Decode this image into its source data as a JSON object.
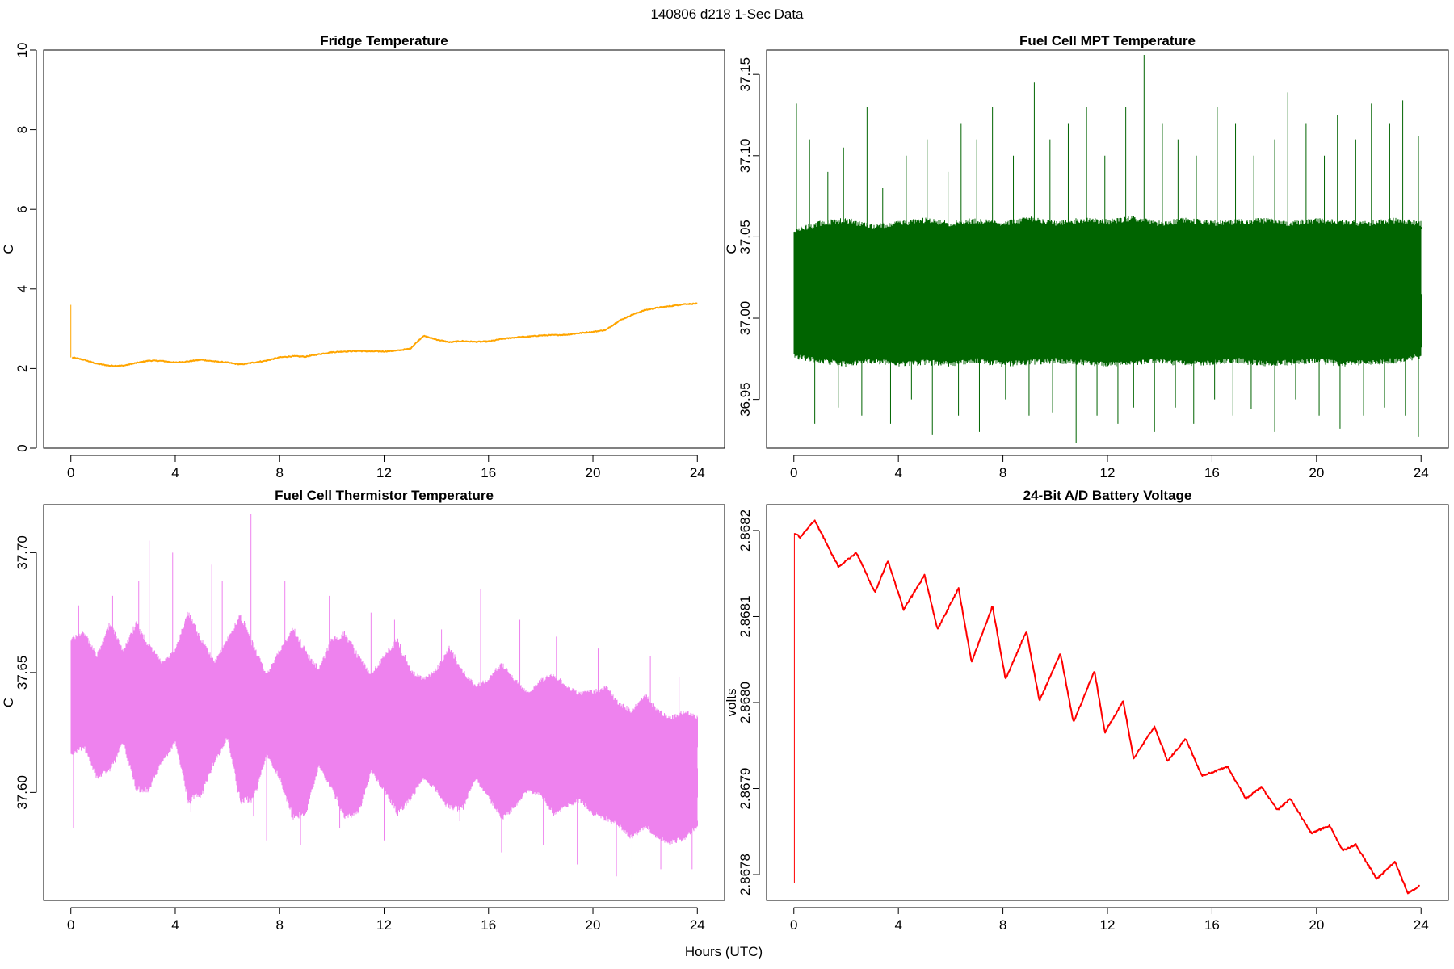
{
  "figure": {
    "title": "140806   d218   1-Sec Data",
    "xlabel": "Hours (UTC)"
  },
  "chart_data": [
    {
      "type": "line",
      "title": "Fridge Temperature",
      "ylabel": "C",
      "xlabel": "Hours (UTC)",
      "color": "#ffa500",
      "xlim": [
        0,
        24
      ],
      "ylim": [
        0,
        10
      ],
      "xticks": [
        0,
        4,
        8,
        12,
        16,
        20,
        24
      ],
      "yticks": [
        0,
        2,
        4,
        6,
        8,
        10
      ],
      "ytick_labels": [
        "0",
        "2",
        "4",
        "6",
        "8",
        "10"
      ],
      "noise": 0.012,
      "spikes": [
        [
          0.0,
          3.6
        ]
      ],
      "x": [
        0,
        0.05,
        0.5,
        1,
        1.5,
        2,
        2.5,
        3,
        3.5,
        4,
        4.5,
        5,
        5.5,
        6,
        6.5,
        7,
        7.5,
        8,
        8.5,
        9,
        9.5,
        10,
        10.5,
        11,
        11.5,
        12,
        12.5,
        13,
        13.5,
        14,
        14.5,
        15,
        15.5,
        16,
        16.5,
        17,
        17.5,
        18,
        18.5,
        19,
        19.5,
        20,
        20.5,
        21,
        21.5,
        22,
        22.5,
        23,
        23.5,
        24
      ],
      "y": [
        2.28,
        2.28,
        2.22,
        2.12,
        2.07,
        2.07,
        2.14,
        2.2,
        2.19,
        2.15,
        2.18,
        2.22,
        2.18,
        2.15,
        2.1,
        2.15,
        2.2,
        2.28,
        2.31,
        2.3,
        2.36,
        2.41,
        2.43,
        2.44,
        2.43,
        2.43,
        2.45,
        2.5,
        2.82,
        2.73,
        2.66,
        2.69,
        2.67,
        2.68,
        2.74,
        2.78,
        2.8,
        2.83,
        2.84,
        2.85,
        2.89,
        2.92,
        2.97,
        3.2,
        3.35,
        3.47,
        3.53,
        3.57,
        3.62,
        3.63
      ]
    },
    {
      "type": "line",
      "title": "Fuel Cell MPT Temperature",
      "ylabel": "C",
      "xlabel": "Hours (UTC)",
      "color": "#006400",
      "xlim": [
        0,
        24
      ],
      "ylim": [
        36.92,
        37.165
      ],
      "xticks": [
        0,
        4,
        8,
        12,
        16,
        20,
        24
      ],
      "yticks": [
        36.95,
        37.0,
        37.05,
        37.1,
        37.15
      ],
      "ytick_labels": [
        "36.95",
        "37.00",
        "37.05",
        "37.10",
        "37.15"
      ],
      "band_x": [
        0,
        1,
        2,
        3,
        4,
        5,
        6,
        7,
        8,
        9,
        10,
        11,
        12,
        13,
        14,
        15,
        16,
        17,
        18,
        19,
        20,
        21,
        22,
        23,
        24
      ],
      "band_low": [
        36.975,
        36.972,
        36.97,
        36.972,
        36.97,
        36.971,
        36.97,
        36.972,
        36.97,
        36.971,
        36.972,
        36.971,
        36.97,
        36.971,
        36.972,
        36.97,
        36.971,
        36.972,
        36.97,
        36.971,
        36.972,
        36.97,
        36.971,
        36.972,
        36.975
      ],
      "band_high": [
        37.055,
        37.06,
        37.062,
        37.058,
        37.06,
        37.062,
        37.06,
        37.062,
        37.06,
        37.063,
        37.06,
        37.062,
        37.061,
        37.063,
        37.06,
        37.062,
        37.06,
        37.061,
        37.062,
        37.06,
        37.062,
        37.061,
        37.06,
        37.062,
        37.06
      ],
      "spikes": [
        [
          0.1,
          37.132
        ],
        [
          0.6,
          37.11
        ],
        [
          1.3,
          37.09
        ],
        [
          1.9,
          37.105
        ],
        [
          2.8,
          37.13
        ],
        [
          3.4,
          37.08
        ],
        [
          4.3,
          37.1
        ],
        [
          5.1,
          37.11
        ],
        [
          5.9,
          37.09
        ],
        [
          6.4,
          37.12
        ],
        [
          7.0,
          37.11
        ],
        [
          7.6,
          37.13
        ],
        [
          8.4,
          37.1
        ],
        [
          9.2,
          37.145
        ],
        [
          9.8,
          37.11
        ],
        [
          10.5,
          37.12
        ],
        [
          11.2,
          37.13
        ],
        [
          11.9,
          37.1
        ],
        [
          12.7,
          37.13
        ],
        [
          13.4,
          37.162
        ],
        [
          14.1,
          37.12
        ],
        [
          14.7,
          37.11
        ],
        [
          15.4,
          37.1
        ],
        [
          16.2,
          37.13
        ],
        [
          16.9,
          37.12
        ],
        [
          17.6,
          37.1
        ],
        [
          18.4,
          37.11
        ],
        [
          18.9,
          37.139
        ],
        [
          19.6,
          37.12
        ],
        [
          20.3,
          37.1
        ],
        [
          20.8,
          37.125
        ],
        [
          21.5,
          37.11
        ],
        [
          22.1,
          37.132
        ],
        [
          22.8,
          37.12
        ],
        [
          23.3,
          37.134
        ],
        [
          23.9,
          37.112
        ],
        [
          0.8,
          36.935
        ],
        [
          1.7,
          36.945
        ],
        [
          2.6,
          36.94
        ],
        [
          3.7,
          36.935
        ],
        [
          4.5,
          36.95
        ],
        [
          5.3,
          36.928
        ],
        [
          6.3,
          36.94
        ],
        [
          7.1,
          36.93
        ],
        [
          8.1,
          36.95
        ],
        [
          9.0,
          36.94
        ],
        [
          9.9,
          36.942
        ],
        [
          10.8,
          36.923
        ],
        [
          11.6,
          36.94
        ],
        [
          12.4,
          36.935
        ],
        [
          13.0,
          36.945
        ],
        [
          13.8,
          36.93
        ],
        [
          14.6,
          36.945
        ],
        [
          15.3,
          36.935
        ],
        [
          16.1,
          36.95
        ],
        [
          16.8,
          36.94
        ],
        [
          17.5,
          36.944
        ],
        [
          18.4,
          36.93
        ],
        [
          19.2,
          36.95
        ],
        [
          20.1,
          36.94
        ],
        [
          20.9,
          36.932
        ],
        [
          21.8,
          36.94
        ],
        [
          22.6,
          36.945
        ],
        [
          23.4,
          36.94
        ],
        [
          23.9,
          36.927
        ]
      ]
    },
    {
      "type": "line",
      "title": "Fuel Cell Thermistor Temperature",
      "ylabel": "C",
      "xlabel": "Hours (UTC)",
      "color": "#ee82ee",
      "xlim": [
        0,
        24
      ],
      "ylim": [
        37.555,
        37.72
      ],
      "xticks": [
        0,
        4,
        8,
        12,
        16,
        20,
        24
      ],
      "yticks": [
        37.6,
        37.65,
        37.7
      ],
      "ytick_labels": [
        "37.60",
        "37.65",
        "37.70"
      ],
      "band_x": [
        0,
        0.5,
        1.0,
        1.5,
        2.0,
        2.5,
        3.0,
        3.5,
        4.0,
        4.5,
        5.0,
        5.5,
        6.0,
        6.5,
        7.0,
        7.5,
        8.0,
        8.5,
        9.0,
        9.5,
        10.0,
        10.5,
        11.0,
        11.5,
        12.0,
        12.5,
        13.0,
        13.5,
        14.0,
        14.5,
        15.0,
        15.5,
        16.0,
        16.5,
        17.0,
        17.5,
        18.0,
        18.5,
        19.0,
        19.5,
        20.0,
        20.5,
        21.0,
        21.5,
        22.0,
        22.5,
        23.0,
        23.5,
        24.0
      ],
      "band_low": [
        37.615,
        37.618,
        37.605,
        37.608,
        37.62,
        37.6,
        37.6,
        37.612,
        37.62,
        37.595,
        37.598,
        37.612,
        37.622,
        37.595,
        37.596,
        37.615,
        37.605,
        37.588,
        37.59,
        37.61,
        37.6,
        37.588,
        37.59,
        37.608,
        37.6,
        37.59,
        37.596,
        37.605,
        37.6,
        37.592,
        37.592,
        37.605,
        37.597,
        37.588,
        37.593,
        37.6,
        37.598,
        37.59,
        37.593,
        37.596,
        37.59,
        37.588,
        37.585,
        37.58,
        37.585,
        37.58,
        37.578,
        37.58,
        37.585
      ],
      "band_high": [
        37.665,
        37.668,
        37.658,
        37.672,
        37.66,
        37.672,
        37.662,
        37.655,
        37.66,
        37.677,
        37.665,
        37.655,
        37.665,
        37.675,
        37.662,
        37.65,
        37.66,
        37.67,
        37.66,
        37.652,
        37.665,
        37.668,
        37.658,
        37.65,
        37.658,
        37.665,
        37.652,
        37.648,
        37.652,
        37.662,
        37.652,
        37.645,
        37.648,
        37.655,
        37.648,
        37.642,
        37.648,
        37.65,
        37.645,
        37.642,
        37.643,
        37.645,
        37.638,
        37.635,
        37.642,
        37.635,
        37.632,
        37.635,
        37.632
      ],
      "spikes": [
        [
          0.1,
          37.585
        ],
        [
          0.3,
          37.678
        ],
        [
          1.6,
          37.682
        ],
        [
          2.6,
          37.688
        ],
        [
          3.0,
          37.705
        ],
        [
          3.9,
          37.7
        ],
        [
          4.6,
          37.592
        ],
        [
          5.4,
          37.695
        ],
        [
          5.8,
          37.688
        ],
        [
          6.4,
          37.6
        ],
        [
          6.9,
          37.716
        ],
        [
          7.0,
          37.59
        ],
        [
          7.5,
          37.58
        ],
        [
          8.2,
          37.688
        ],
        [
          8.8,
          37.578
        ],
        [
          9.9,
          37.682
        ],
        [
          10.3,
          37.585
        ],
        [
          11.5,
          37.675
        ],
        [
          12.0,
          37.58
        ],
        [
          12.4,
          37.672
        ],
        [
          13.3,
          37.59
        ],
        [
          14.2,
          37.668
        ],
        [
          14.9,
          37.588
        ],
        [
          15.7,
          37.685
        ],
        [
          16.5,
          37.575
        ],
        [
          17.2,
          37.672
        ],
        [
          18.1,
          37.578
        ],
        [
          18.6,
          37.665
        ],
        [
          19.4,
          37.57
        ],
        [
          20.2,
          37.66
        ],
        [
          20.9,
          37.565
        ],
        [
          21.5,
          37.563
        ],
        [
          22.2,
          37.657
        ],
        [
          22.6,
          37.568
        ],
        [
          23.3,
          37.648
        ],
        [
          23.8,
          37.568
        ]
      ]
    },
    {
      "type": "line",
      "title": "24-Bit A/D Battery Voltage",
      "ylabel": "volts",
      "xlabel": "Hours (UTC)",
      "color": "#ff0000",
      "xlim": [
        0,
        24
      ],
      "ylim": [
        2.86777,
        2.86823
      ],
      "xticks": [
        0,
        4,
        8,
        12,
        16,
        20,
        24
      ],
      "yticks": [
        2.8678,
        2.8679,
        2.868,
        2.8681,
        2.8682
      ],
      "ytick_labels": [
        "2.8678",
        "2.8679",
        "2.8680",
        "2.8681",
        "2.8682"
      ],
      "spikes": [
        [
          0.02,
          2.86779
        ]
      ],
      "x": [
        0,
        0.03,
        0.25,
        0.8,
        1.7,
        2.4,
        3.1,
        3.6,
        4.2,
        5.0,
        5.5,
        6.3,
        6.8,
        7.6,
        8.1,
        8.9,
        9.4,
        10.2,
        10.7,
        11.5,
        11.9,
        12.6,
        13.0,
        13.8,
        14.3,
        15.0,
        15.6,
        16.6,
        17.3,
        17.9,
        18.5,
        19.0,
        19.8,
        20.5,
        21.0,
        21.5,
        22.3,
        23.0,
        23.5,
        23.95
      ],
      "y": [
        2.86779,
        2.868197,
        2.868192,
        2.868212,
        2.868158,
        2.868174,
        2.868128,
        2.868165,
        2.868108,
        2.868148,
        2.868085,
        2.868133,
        2.868047,
        2.868112,
        2.868027,
        2.868083,
        2.868002,
        2.868057,
        2.867977,
        2.868037,
        2.867965,
        2.868002,
        2.867935,
        2.867972,
        2.867932,
        2.867958,
        2.867915,
        2.867925,
        2.867888,
        2.867902,
        2.867875,
        2.867888,
        2.867848,
        2.867857,
        2.867828,
        2.867835,
        2.867795,
        2.867815,
        2.867778,
        2.867787
      ]
    }
  ]
}
